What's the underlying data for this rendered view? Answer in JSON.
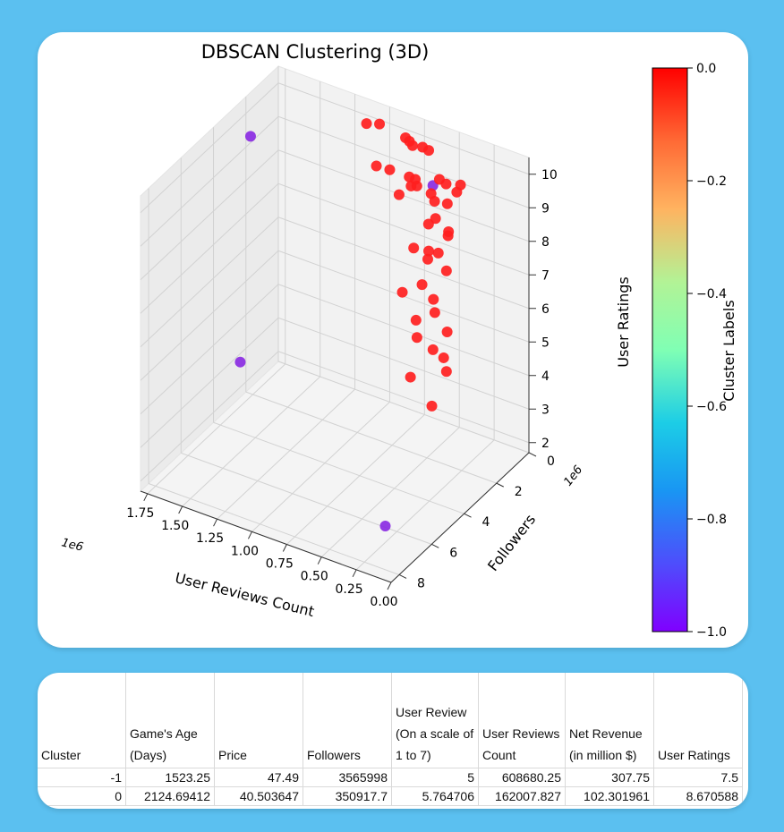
{
  "colors": {
    "background": "#5bc0f0",
    "cluster_noise": "#8a2be2",
    "cluster_main": "#ff2020"
  },
  "chart_data": {
    "type": "scatter",
    "projection": "3d",
    "title": "DBSCAN Clustering (3D)",
    "xlabel": "User Reviews Count",
    "ylabel": "Followers",
    "zlabel": "User Ratings",
    "x_ticks": [
      "1.75",
      "1.50",
      "1.25",
      "1.00",
      "0.75",
      "0.50",
      "0.25",
      "0.00"
    ],
    "y_ticks": [
      "0",
      "2",
      "4",
      "6",
      "8"
    ],
    "z_ticks": [
      "2",
      "3",
      "4",
      "5",
      "6",
      "7",
      "8",
      "9",
      "10"
    ],
    "x_offset": "1e6",
    "y_offset": "1e6",
    "xlim": [
      0,
      1800000
    ],
    "ylim": [
      0,
      8500000
    ],
    "zlim": [
      1.7,
      10.5
    ],
    "grid": true,
    "colorbar": {
      "label": "Cluster Labels",
      "range": [
        -1.0,
        0.0
      ],
      "ticks": [
        "0.0",
        "−0.2",
        "−0.4",
        "−0.6",
        "−0.8",
        "−1.0"
      ],
      "colormap": "rainbow"
    },
    "series": [
      {
        "name": "-1",
        "points": [
          {
            "x": 1650000,
            "y": 3000000,
            "z": 10
          },
          {
            "x": 620000,
            "y": 600000,
            "z": 9
          },
          {
            "x": 100000,
            "y": 8000000,
            "z": 3
          },
          {
            "x": 1200000,
            "y": 7500000,
            "z": 6
          }
        ]
      },
      {
        "name": "0",
        "points": [
          {
            "x": 1120000,
            "y": 400000,
            "z": 10
          },
          {
            "x": 1050000,
            "y": 200000,
            "z": 10
          },
          {
            "x": 1020000,
            "y": 650000,
            "z": 9
          },
          {
            "x": 840000,
            "y": 400000,
            "z": 10
          },
          {
            "x": 800000,
            "y": 500000,
            "z": 10
          },
          {
            "x": 760000,
            "y": 650000,
            "z": 10
          },
          {
            "x": 930000,
            "y": 600000,
            "z": 9
          },
          {
            "x": 790000,
            "y": 600000,
            "z": 9
          },
          {
            "x": 700000,
            "y": 550000,
            "z": 10
          },
          {
            "x": 650000,
            "y": 600000,
            "z": 10
          },
          {
            "x": 730000,
            "y": 1000000,
            "z": 9
          },
          {
            "x": 700000,
            "y": 900000,
            "z": 9
          },
          {
            "x": 620000,
            "y": 200000,
            "z": 9
          },
          {
            "x": 560000,
            "y": 300000,
            "z": 9
          },
          {
            "x": 480000,
            "y": 100000,
            "z": 9
          },
          {
            "x": 460000,
            "y": 500000,
            "z": 9
          },
          {
            "x": 560000,
            "y": 2200000,
            "z": 10
          },
          {
            "x": 560000,
            "y": 3200000,
            "z": 10
          },
          {
            "x": 400000,
            "y": 2600000,
            "z": 10
          },
          {
            "x": 340000,
            "y": 2900000,
            "z": 10
          },
          {
            "x": 240000,
            "y": 3700000,
            "z": 10
          },
          {
            "x": 100000,
            "y": 4100000,
            "z": 10
          },
          {
            "x": 260000,
            "y": 2800000,
            "z": 10
          },
          {
            "x": 80000,
            "y": 4300000,
            "z": 10
          },
          {
            "x": 430000,
            "y": 2500000,
            "z": 9
          },
          {
            "x": 220000,
            "y": 3700000,
            "z": 9
          },
          {
            "x": 80000,
            "y": 4400000,
            "z": 9
          },
          {
            "x": 560000,
            "y": 2300000,
            "z": 8
          },
          {
            "x": 650000,
            "y": 600000,
            "z": 7
          },
          {
            "x": 610000,
            "y": 1000000,
            "z": 7
          },
          {
            "x": 560000,
            "y": 3000000,
            "z": 7
          },
          {
            "x": 500000,
            "y": 2300000,
            "z": 7
          },
          {
            "x": 360000,
            "y": 2800000,
            "z": 7
          },
          {
            "x": 280000,
            "y": 3400000,
            "z": 7
          },
          {
            "x": 110000,
            "y": 4100000,
            "z": 7
          },
          {
            "x": 520000,
            "y": 2500000,
            "z": 6
          },
          {
            "x": 420000,
            "y": 3300000,
            "z": 6
          },
          {
            "x": 270000,
            "y": 3600000,
            "z": 6
          },
          {
            "x": 170000,
            "y": 3800000,
            "z": 6
          },
          {
            "x": 80000,
            "y": 4400000,
            "z": 6
          },
          {
            "x": 420000,
            "y": 3700000,
            "z": 5
          },
          {
            "x": 150000,
            "y": 4700000,
            "z": 5
          }
        ]
      }
    ]
  },
  "table": {
    "headers": [
      "Cluster",
      "Game's Age (Days)",
      "Price",
      "Followers",
      "User Review (On a scale of 1 to 7)",
      "User Reviews Count",
      "Net Revenue (in million $)",
      "User Ratings"
    ],
    "rows": [
      [
        "-1",
        "1523.25",
        "47.49",
        "3565998",
        "5",
        "608680.25",
        "307.75",
        "7.5"
      ],
      [
        "0",
        "2124.69412",
        "40.503647",
        "350917.7",
        "5.764706",
        "162007.827",
        "102.301961",
        "8.670588"
      ]
    ]
  }
}
